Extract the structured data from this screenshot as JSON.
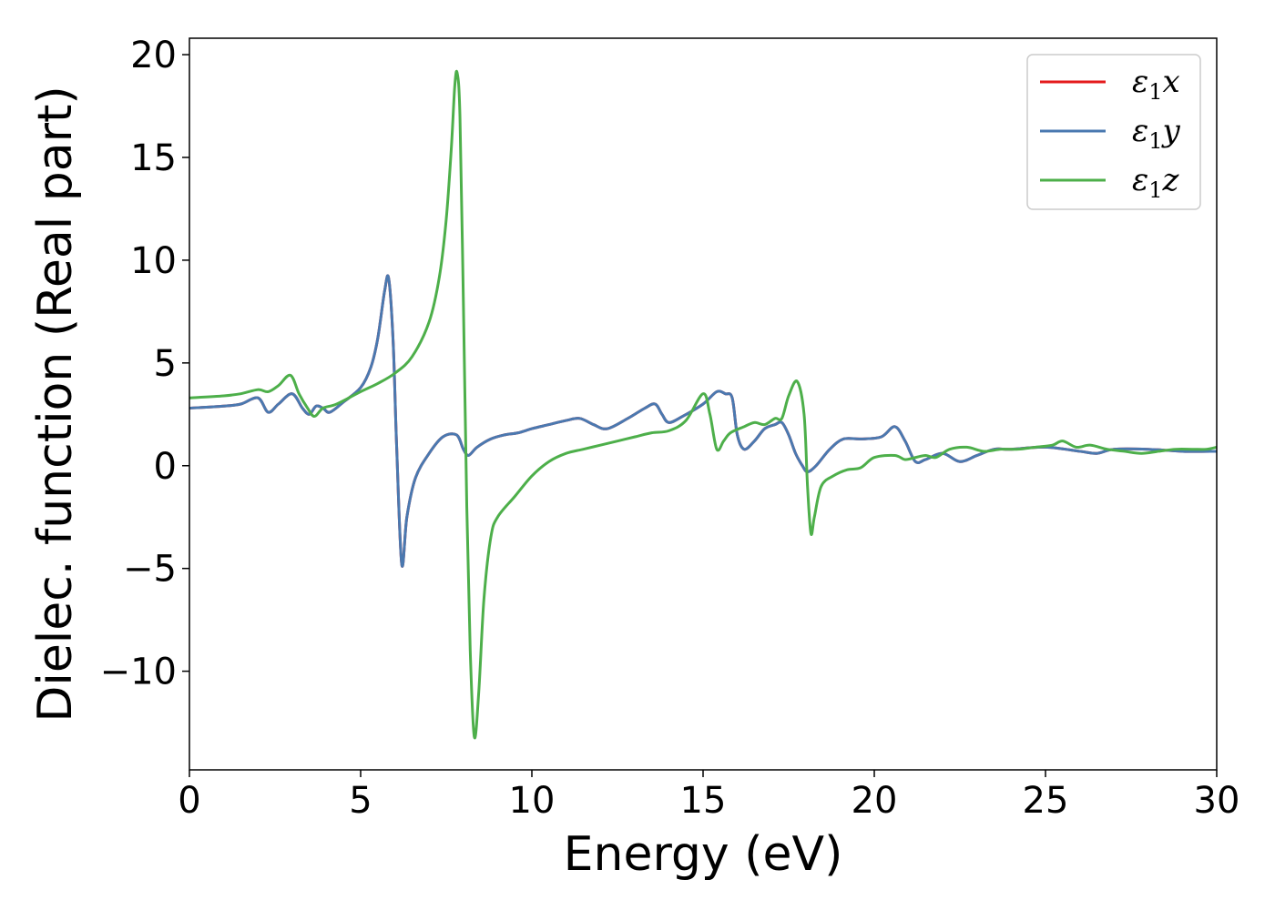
{
  "chart_data": {
    "type": "line",
    "title": "",
    "xlabel": "Energy (eV)",
    "ylabel": "Dielec. function (Real part)",
    "xlim": [
      0,
      30
    ],
    "ylim": [
      -14.8,
      20.8
    ],
    "xticks": [
      0,
      5,
      10,
      15,
      20,
      25,
      30
    ],
    "xtick_labels": [
      "0",
      "5",
      "10",
      "15",
      "20",
      "25",
      "30"
    ],
    "yticks": [
      -10,
      -5,
      0,
      5,
      10,
      15,
      20
    ],
    "ytick_labels": [
      "−10",
      "−5",
      "0",
      "5",
      "10",
      "15",
      "20"
    ],
    "grid": false,
    "legend_position": "top-right",
    "series": [
      {
        "name": "ε₁x",
        "legend": {
          "base": "ε",
          "sub": "1",
          "letter": "x"
        },
        "color": "#e41a1c",
        "x": [
          0,
          1,
          1.5,
          2,
          2.3,
          2.6,
          3,
          3.3,
          3.5,
          3.7,
          3.9,
          4.1,
          4.5,
          5,
          5.3,
          5.5,
          5.7,
          5.82,
          5.95,
          6.05,
          6.2,
          6.35,
          6.6,
          7,
          7.4,
          7.8,
          8.0,
          8.15,
          8.4,
          8.8,
          9.2,
          9.6,
          10,
          10.5,
          11,
          11.4,
          11.8,
          12.2,
          12.8,
          13.3,
          13.6,
          13.8,
          14.0,
          14.4,
          15.0,
          15.4,
          15.65,
          15.85,
          16.0,
          16.2,
          16.5,
          16.8,
          17.1,
          17.3,
          17.5,
          17.7,
          17.9,
          18.05,
          18.3,
          18.7,
          19.1,
          19.6,
          20.2,
          20.6,
          20.9,
          21.2,
          21.5,
          22,
          22.5,
          23,
          23.5,
          24,
          25,
          26,
          26.5,
          27,
          28,
          29,
          30
        ],
        "y": [
          2.8,
          2.9,
          3.0,
          3.3,
          2.6,
          3.0,
          3.5,
          2.8,
          2.5,
          2.9,
          2.8,
          2.6,
          3.1,
          3.8,
          4.8,
          6.2,
          8.5,
          9.1,
          6.0,
          1.0,
          -4.8,
          -2.5,
          -0.6,
          0.6,
          1.4,
          1.5,
          0.8,
          0.5,
          0.9,
          1.3,
          1.5,
          1.6,
          1.8,
          2.0,
          2.2,
          2.3,
          2.0,
          1.8,
          2.3,
          2.8,
          3.0,
          2.5,
          2.1,
          2.4,
          3.0,
          3.6,
          3.5,
          3.3,
          1.5,
          0.8,
          1.2,
          1.8,
          2.0,
          2.1,
          1.5,
          0.6,
          0.0,
          -0.3,
          0.0,
          0.8,
          1.3,
          1.3,
          1.4,
          1.9,
          1.2,
          0.2,
          0.3,
          0.6,
          0.2,
          0.5,
          0.8,
          0.8,
          0.9,
          0.7,
          0.6,
          0.8,
          0.8,
          0.7,
          0.7
        ]
      },
      {
        "name": "ε₁y",
        "legend": {
          "base": "ε",
          "sub": "1",
          "letter": "y"
        },
        "color": "#4a79b0",
        "x": [
          0,
          1,
          1.5,
          2,
          2.3,
          2.6,
          3,
          3.3,
          3.5,
          3.7,
          3.9,
          4.1,
          4.5,
          5,
          5.3,
          5.5,
          5.7,
          5.82,
          5.95,
          6.05,
          6.2,
          6.35,
          6.6,
          7,
          7.4,
          7.8,
          8.0,
          8.15,
          8.4,
          8.8,
          9.2,
          9.6,
          10,
          10.5,
          11,
          11.4,
          11.8,
          12.2,
          12.8,
          13.3,
          13.6,
          13.8,
          14.0,
          14.4,
          15.0,
          15.4,
          15.65,
          15.85,
          16.0,
          16.2,
          16.5,
          16.8,
          17.1,
          17.3,
          17.5,
          17.7,
          17.9,
          18.05,
          18.3,
          18.7,
          19.1,
          19.6,
          20.2,
          20.6,
          20.9,
          21.2,
          21.5,
          22,
          22.5,
          23,
          23.5,
          24,
          25,
          26,
          26.5,
          27,
          28,
          29,
          30
        ],
        "y": [
          2.8,
          2.9,
          3.0,
          3.3,
          2.6,
          3.0,
          3.5,
          2.8,
          2.5,
          2.9,
          2.8,
          2.6,
          3.1,
          3.8,
          4.8,
          6.2,
          8.5,
          9.1,
          6.0,
          1.0,
          -4.8,
          -2.5,
          -0.6,
          0.6,
          1.4,
          1.5,
          0.8,
          0.5,
          0.9,
          1.3,
          1.5,
          1.6,
          1.8,
          2.0,
          2.2,
          2.3,
          2.0,
          1.8,
          2.3,
          2.8,
          3.0,
          2.5,
          2.1,
          2.4,
          3.0,
          3.6,
          3.5,
          3.3,
          1.5,
          0.8,
          1.2,
          1.8,
          2.0,
          2.1,
          1.5,
          0.6,
          0.0,
          -0.3,
          0.0,
          0.8,
          1.3,
          1.3,
          1.4,
          1.9,
          1.2,
          0.2,
          0.3,
          0.6,
          0.2,
          0.5,
          0.8,
          0.8,
          0.9,
          0.7,
          0.6,
          0.8,
          0.8,
          0.7,
          0.7
        ]
      },
      {
        "name": "ε₁z",
        "legend": {
          "base": "ε",
          "sub": "1",
          "letter": "z"
        },
        "color": "#4daf4a",
        "x": [
          0,
          1,
          1.5,
          2,
          2.3,
          2.6,
          2.95,
          3.2,
          3.45,
          3.65,
          3.9,
          4.3,
          5,
          5.5,
          6,
          6.5,
          7.0,
          7.3,
          7.5,
          7.65,
          7.75,
          7.82,
          7.9,
          8.0,
          8.1,
          8.2,
          8.32,
          8.45,
          8.6,
          8.8,
          9.0,
          9.5,
          10,
          10.5,
          11,
          11.5,
          12,
          12.5,
          13,
          13.5,
          14,
          14.5,
          15.0,
          15.2,
          15.4,
          15.6,
          15.8,
          16.2,
          16.5,
          16.8,
          17.1,
          17.3,
          17.5,
          17.75,
          17.95,
          18.05,
          18.15,
          18.25,
          18.45,
          18.8,
          19.2,
          19.6,
          20.0,
          20.6,
          20.9,
          21.2,
          21.5,
          21.8,
          22.2,
          22.7,
          23.2,
          23.7,
          24.2,
          24.7,
          25.2,
          25.5,
          25.9,
          26.3,
          26.8,
          27.3,
          27.8,
          28.3,
          28.8,
          29.3,
          29.7,
          30
        ],
        "y": [
          3.3,
          3.4,
          3.5,
          3.7,
          3.6,
          3.9,
          4.4,
          3.5,
          2.8,
          2.4,
          2.8,
          3.0,
          3.6,
          4.0,
          4.5,
          5.3,
          7.0,
          9.2,
          12.0,
          15.5,
          18.5,
          19.1,
          17.0,
          8.0,
          -2.0,
          -9.0,
          -13.2,
          -11.0,
          -6.5,
          -3.5,
          -2.5,
          -1.5,
          -0.5,
          0.2,
          0.6,
          0.8,
          1.0,
          1.2,
          1.4,
          1.6,
          1.7,
          2.2,
          3.5,
          2.5,
          0.8,
          1.2,
          1.6,
          1.9,
          2.1,
          2.0,
          2.3,
          2.3,
          3.4,
          4.1,
          2.5,
          -1.0,
          -3.3,
          -2.5,
          -1.0,
          -0.5,
          -0.2,
          -0.1,
          0.4,
          0.5,
          0.3,
          0.4,
          0.5,
          0.4,
          0.8,
          0.9,
          0.7,
          0.8,
          0.8,
          0.9,
          1.0,
          1.2,
          0.9,
          1.0,
          0.8,
          0.7,
          0.6,
          0.7,
          0.8,
          0.8,
          0.8,
          0.9
        ]
      }
    ]
  }
}
